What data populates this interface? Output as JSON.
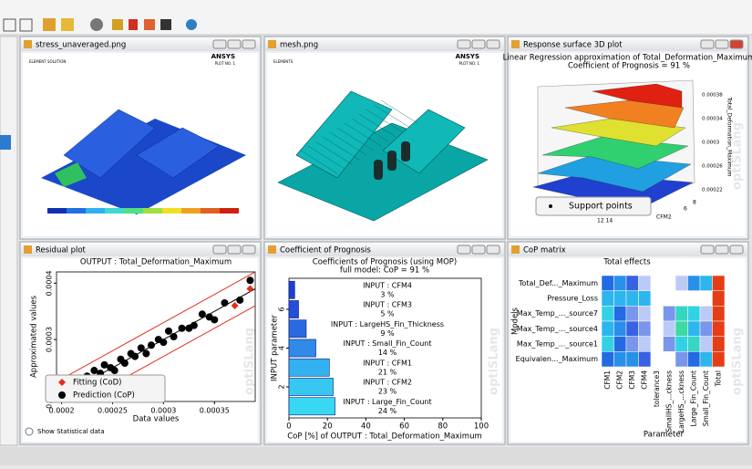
{
  "windows": [
    {
      "title": "stress_unaveraged.png"
    },
    {
      "title": "mesh.png"
    },
    {
      "title": "Response surface 3D plot"
    },
    {
      "title": "Residual plot"
    },
    {
      "title": "Coefficient of Prognosis"
    },
    {
      "title": "CoP matrix"
    }
  ],
  "watermark": "optiSLang",
  "stress_image": {
    "texts": [
      "ELEMENT SOLUTION",
      "ANSYS",
      "PLOT NO. 1"
    ]
  },
  "mesh_image": {
    "texts": [
      "ELEMENTS",
      "ANSYS",
      "PLOT NO. 1"
    ]
  },
  "surface_plot": {
    "title": "Linear Regression approximation of Total_Deformation_Maximum",
    "subtitle": "Coefficient of Prognosis = 91 %",
    "z_label": "Total_Deformation_Maximum",
    "z_ticks": [
      "0.00038",
      "0.00034",
      "0.0003",
      "0.00026",
      "0.00022"
    ],
    "x_label": "CFM2",
    "x_ticks": [
      "6",
      "8"
    ],
    "y_ticks": [
      "12 14"
    ],
    "legend": "Support points"
  },
  "show_statistical_data": "Show Statistical data",
  "chart_data": [
    {
      "type": "scatter",
      "title": "OUTPUT : Total_Deformation_Maximum",
      "x_label": "Data values",
      "y_label": "Approximated values",
      "xlim": [
        0.000195,
        0.00039
      ],
      "ylim": [
        0.00019,
        0.00042
      ],
      "xticks": [
        0.0002,
        0.00025,
        0.0003,
        0.00035
      ],
      "yticks": [
        0.0002,
        0.0003,
        0.0004
      ],
      "confidence_band": 3e-05,
      "series": [
        {
          "name": "Fitting (CoD)",
          "color": "#e03020",
          "x": [
            0.000385,
            0.00037
          ],
          "values": [
            0.00039,
            0.00036
          ]
        },
        {
          "name": "Prediction (CoP)",
          "color": "#000000",
          "x": [
            0.000205,
            0.00021,
            0.000215,
            0.00022,
            0.000225,
            0.00023,
            0.000232,
            0.000238,
            0.000242,
            0.000248,
            0.000252,
            0.000258,
            0.000262,
            0.000268,
            0.000272,
            0.000278,
            0.000283,
            0.000288,
            0.000295,
            0.0003,
            0.000305,
            0.00031,
            0.000318,
            0.000325,
            0.00033,
            0.000338,
            0.000345,
            0.00035,
            0.00036,
            0.000375,
            0.000385
          ],
          "values": [
            0.000215,
            0.000205,
            0.000225,
            0.000215,
            0.000235,
            0.00023,
            0.000245,
            0.00024,
            0.000255,
            0.00025,
            0.000245,
            0.000265,
            0.000258,
            0.000275,
            0.00027,
            0.000285,
            0.000275,
            0.00029,
            0.0003,
            0.000295,
            0.000315,
            0.000305,
            0.00032,
            0.00032,
            0.000325,
            0.000345,
            0.00034,
            0.000335,
            0.000365,
            0.00037,
            0.000405
          ]
        }
      ]
    },
    {
      "type": "hbar",
      "title": "Coefficients of Prognosis (using MOP)",
      "subtitle": "full model: CoP = 91 %",
      "x_label": "CoP [%] of OUTPUT : Total_Deformation_Maximum",
      "y_label": "INPUT parameter",
      "categories": [
        "INPUT : CFM4",
        "INPUT : CFM3",
        "INPUT : LargeHS_Fin_Thickness",
        "INPUT : Small_Fin_Count",
        "INPUT : CFM1",
        "INPUT : CFM2",
        "INPUT : Large_Fin_Count"
      ],
      "values": [
        3,
        5,
        9,
        14,
        21,
        23,
        24
      ],
      "value_labels": [
        "3 %",
        "5 %",
        "9 %",
        "14 %",
        "21 %",
        "23 %",
        "24 %"
      ],
      "colors": [
        "#1f3fd0",
        "#2450d8",
        "#2a6ae0",
        "#2f8ae8",
        "#33b0ee",
        "#36c8f0",
        "#38d8f2"
      ],
      "xlim": [
        0,
        100
      ],
      "xticks": [
        0,
        20,
        40,
        60,
        80,
        100
      ],
      "ylim": [
        0.4,
        7.6
      ],
      "yticks": [
        2,
        4,
        6
      ]
    },
    {
      "type": "heatmap",
      "title": "Total effects",
      "x_label": "Parameter",
      "y_label": "Models",
      "rows": [
        "Total_Def..._Maximum",
        "Pressure_Loss",
        "Max_Temp_..._source7",
        "Max_Temp_..._source4",
        "Max_Temp_..._source1",
        "Equivalen..._Maximum"
      ],
      "columns": [
        "CFM1",
        "CFM2",
        "CFM3",
        "CFM4",
        "tolerance3",
        "SmallHS_...ckness",
        "LargeHS_...ckness",
        "Large_Fin_Count",
        "Small_Fin_Count",
        "Total"
      ],
      "values": [
        [
          20,
          25,
          15,
          5,
          0,
          0,
          5,
          25,
          30,
          95
        ],
        [
          30,
          30,
          30,
          30,
          0,
          0,
          0,
          0,
          0,
          95
        ],
        [
          35,
          20,
          10,
          5,
          0,
          10,
          40,
          35,
          5,
          95
        ],
        [
          30,
          25,
          15,
          10,
          0,
          5,
          45,
          30,
          10,
          95
        ],
        [
          35,
          20,
          10,
          5,
          0,
          10,
          35,
          40,
          5,
          95
        ],
        [
          20,
          25,
          25,
          15,
          0,
          0,
          10,
          20,
          30,
          95
        ]
      ],
      "zlim": [
        0,
        100
      ],
      "colorscale": [
        "#ffffff",
        "#2050e0",
        "#30d0f0",
        "#40e080",
        "#f0f020",
        "#f08020",
        "#e02010"
      ]
    }
  ]
}
